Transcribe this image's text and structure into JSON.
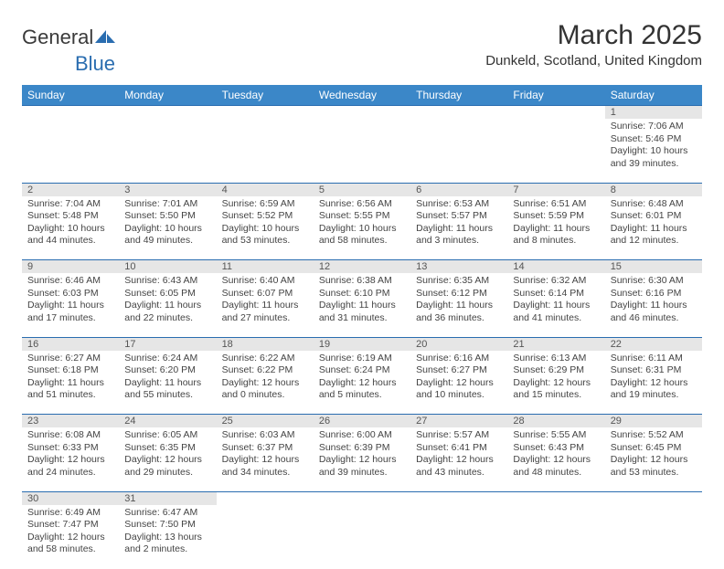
{
  "brand": {
    "part1": "General",
    "part2": "Blue"
  },
  "title": "March 2025",
  "location": "Dunkeld, Scotland, United Kingdom",
  "styling": {
    "header_bg": "#3b87c8",
    "header_fg": "#ffffff",
    "daynum_bg": "#e6e6e6",
    "row_divider": "#2a6db0",
    "body_bg": "#ffffff",
    "text_color": "#333333",
    "title_fontsize": 30,
    "header_fontsize": 12,
    "cell_fontsize": 10.5
  },
  "weekdays": [
    "Sunday",
    "Monday",
    "Tuesday",
    "Wednesday",
    "Thursday",
    "Friday",
    "Saturday"
  ],
  "weeks": [
    [
      null,
      null,
      null,
      null,
      null,
      null,
      {
        "d": "1",
        "sr": "Sunrise: 7:06 AM",
        "ss": "Sunset: 5:46 PM",
        "dl": "Daylight: 10 hours and 39 minutes."
      }
    ],
    [
      {
        "d": "2",
        "sr": "Sunrise: 7:04 AM",
        "ss": "Sunset: 5:48 PM",
        "dl": "Daylight: 10 hours and 44 minutes."
      },
      {
        "d": "3",
        "sr": "Sunrise: 7:01 AM",
        "ss": "Sunset: 5:50 PM",
        "dl": "Daylight: 10 hours and 49 minutes."
      },
      {
        "d": "4",
        "sr": "Sunrise: 6:59 AM",
        "ss": "Sunset: 5:52 PM",
        "dl": "Daylight: 10 hours and 53 minutes."
      },
      {
        "d": "5",
        "sr": "Sunrise: 6:56 AM",
        "ss": "Sunset: 5:55 PM",
        "dl": "Daylight: 10 hours and 58 minutes."
      },
      {
        "d": "6",
        "sr": "Sunrise: 6:53 AM",
        "ss": "Sunset: 5:57 PM",
        "dl": "Daylight: 11 hours and 3 minutes."
      },
      {
        "d": "7",
        "sr": "Sunrise: 6:51 AM",
        "ss": "Sunset: 5:59 PM",
        "dl": "Daylight: 11 hours and 8 minutes."
      },
      {
        "d": "8",
        "sr": "Sunrise: 6:48 AM",
        "ss": "Sunset: 6:01 PM",
        "dl": "Daylight: 11 hours and 12 minutes."
      }
    ],
    [
      {
        "d": "9",
        "sr": "Sunrise: 6:46 AM",
        "ss": "Sunset: 6:03 PM",
        "dl": "Daylight: 11 hours and 17 minutes."
      },
      {
        "d": "10",
        "sr": "Sunrise: 6:43 AM",
        "ss": "Sunset: 6:05 PM",
        "dl": "Daylight: 11 hours and 22 minutes."
      },
      {
        "d": "11",
        "sr": "Sunrise: 6:40 AM",
        "ss": "Sunset: 6:07 PM",
        "dl": "Daylight: 11 hours and 27 minutes."
      },
      {
        "d": "12",
        "sr": "Sunrise: 6:38 AM",
        "ss": "Sunset: 6:10 PM",
        "dl": "Daylight: 11 hours and 31 minutes."
      },
      {
        "d": "13",
        "sr": "Sunrise: 6:35 AM",
        "ss": "Sunset: 6:12 PM",
        "dl": "Daylight: 11 hours and 36 minutes."
      },
      {
        "d": "14",
        "sr": "Sunrise: 6:32 AM",
        "ss": "Sunset: 6:14 PM",
        "dl": "Daylight: 11 hours and 41 minutes."
      },
      {
        "d": "15",
        "sr": "Sunrise: 6:30 AM",
        "ss": "Sunset: 6:16 PM",
        "dl": "Daylight: 11 hours and 46 minutes."
      }
    ],
    [
      {
        "d": "16",
        "sr": "Sunrise: 6:27 AM",
        "ss": "Sunset: 6:18 PM",
        "dl": "Daylight: 11 hours and 51 minutes."
      },
      {
        "d": "17",
        "sr": "Sunrise: 6:24 AM",
        "ss": "Sunset: 6:20 PM",
        "dl": "Daylight: 11 hours and 55 minutes."
      },
      {
        "d": "18",
        "sr": "Sunrise: 6:22 AM",
        "ss": "Sunset: 6:22 PM",
        "dl": "Daylight: 12 hours and 0 minutes."
      },
      {
        "d": "19",
        "sr": "Sunrise: 6:19 AM",
        "ss": "Sunset: 6:24 PM",
        "dl": "Daylight: 12 hours and 5 minutes."
      },
      {
        "d": "20",
        "sr": "Sunrise: 6:16 AM",
        "ss": "Sunset: 6:27 PM",
        "dl": "Daylight: 12 hours and 10 minutes."
      },
      {
        "d": "21",
        "sr": "Sunrise: 6:13 AM",
        "ss": "Sunset: 6:29 PM",
        "dl": "Daylight: 12 hours and 15 minutes."
      },
      {
        "d": "22",
        "sr": "Sunrise: 6:11 AM",
        "ss": "Sunset: 6:31 PM",
        "dl": "Daylight: 12 hours and 19 minutes."
      }
    ],
    [
      {
        "d": "23",
        "sr": "Sunrise: 6:08 AM",
        "ss": "Sunset: 6:33 PM",
        "dl": "Daylight: 12 hours and 24 minutes."
      },
      {
        "d": "24",
        "sr": "Sunrise: 6:05 AM",
        "ss": "Sunset: 6:35 PM",
        "dl": "Daylight: 12 hours and 29 minutes."
      },
      {
        "d": "25",
        "sr": "Sunrise: 6:03 AM",
        "ss": "Sunset: 6:37 PM",
        "dl": "Daylight: 12 hours and 34 minutes."
      },
      {
        "d": "26",
        "sr": "Sunrise: 6:00 AM",
        "ss": "Sunset: 6:39 PM",
        "dl": "Daylight: 12 hours and 39 minutes."
      },
      {
        "d": "27",
        "sr": "Sunrise: 5:57 AM",
        "ss": "Sunset: 6:41 PM",
        "dl": "Daylight: 12 hours and 43 minutes."
      },
      {
        "d": "28",
        "sr": "Sunrise: 5:55 AM",
        "ss": "Sunset: 6:43 PM",
        "dl": "Daylight: 12 hours and 48 minutes."
      },
      {
        "d": "29",
        "sr": "Sunrise: 5:52 AM",
        "ss": "Sunset: 6:45 PM",
        "dl": "Daylight: 12 hours and 53 minutes."
      }
    ],
    [
      {
        "d": "30",
        "sr": "Sunrise: 6:49 AM",
        "ss": "Sunset: 7:47 PM",
        "dl": "Daylight: 12 hours and 58 minutes."
      },
      {
        "d": "31",
        "sr": "Sunrise: 6:47 AM",
        "ss": "Sunset: 7:50 PM",
        "dl": "Daylight: 13 hours and 2 minutes."
      },
      null,
      null,
      null,
      null,
      null
    ]
  ]
}
